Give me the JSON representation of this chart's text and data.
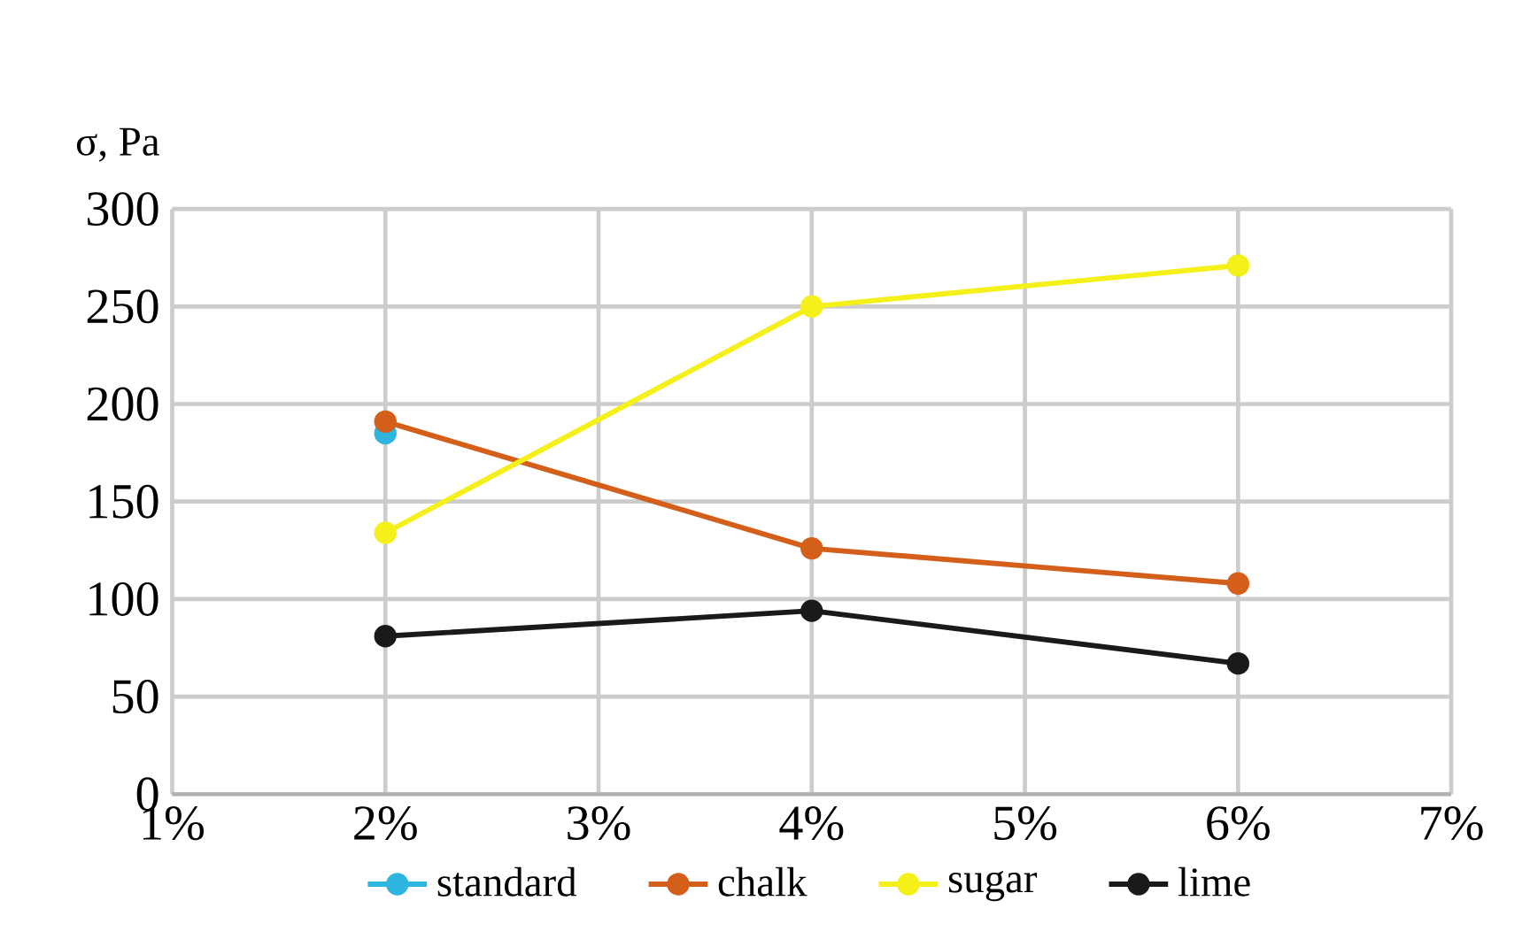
{
  "chart_data": {
    "type": "line",
    "ylabel": "σ, Pa",
    "x": [
      2,
      4,
      6
    ],
    "series": [
      {
        "name": "standard",
        "color": "#2eb6e0",
        "x": [
          2
        ],
        "values": [
          185
        ]
      },
      {
        "name": "chalk",
        "color": "#d35f1a",
        "values": [
          191,
          126,
          108
        ]
      },
      {
        "name": "sugar",
        "color": "#f5f01a",
        "values": [
          134,
          250,
          271
        ]
      },
      {
        "name": "lime",
        "color": "#1a1a1a",
        "values": [
          81,
          94,
          67
        ]
      }
    ],
    "xlim": [
      1,
      7
    ],
    "ylim": [
      0,
      300
    ],
    "xticks": [
      {
        "value": 1,
        "label": "1%"
      },
      {
        "value": 2,
        "label": "2%"
      },
      {
        "value": 3,
        "label": "3%"
      },
      {
        "value": 4,
        "label": "4%"
      },
      {
        "value": 5,
        "label": "5%"
      },
      {
        "value": 6,
        "label": "6%"
      },
      {
        "value": 7,
        "label": "7%"
      }
    ],
    "yticks": [
      0,
      50,
      100,
      150,
      200,
      250,
      300
    ],
    "grid": true,
    "legend": "bottom",
    "marker": "circle",
    "line_style": "solid"
  }
}
